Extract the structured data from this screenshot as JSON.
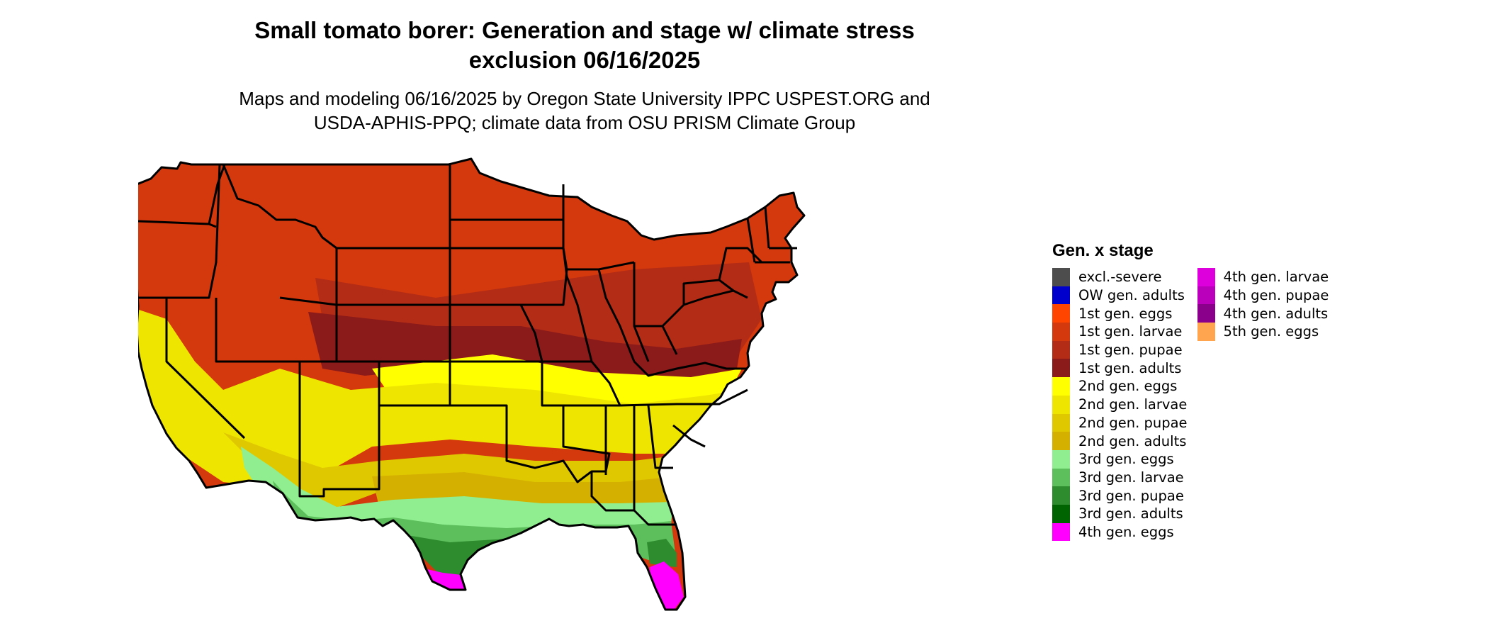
{
  "map": {
    "title_line1": "Small tomato borer: Generation and stage w/ climate stress",
    "title_line2": "exclusion 06/16/2025",
    "subtitle_line1": "Maps and modeling 06/16/2025 by Oregon State University IPPC USPEST.ORG and",
    "subtitle_line2": "USDA-APHIS-PPQ; climate data from OSU PRISM Climate Group",
    "region": "Contiguous United States",
    "zones": [
      {
        "name": "excl-north-west",
        "category": "excl.-severe"
      },
      {
        "name": "excl-rockies",
        "category": "excl.-severe"
      },
      {
        "name": "excl-upper-midwest",
        "category": "excl.-severe"
      },
      {
        "name": "excl-new-england",
        "category": "excl.-severe"
      },
      {
        "name": "first-gen-larvae-band",
        "category": "1st gen. larvae"
      },
      {
        "name": "first-gen-pupae-band",
        "category": "1st gen. pupae"
      },
      {
        "name": "first-gen-adults-band",
        "category": "1st gen. adults"
      },
      {
        "name": "second-gen-eggs-band",
        "category": "2nd gen. eggs"
      },
      {
        "name": "second-gen-larvae-band",
        "category": "2nd gen. larvae"
      },
      {
        "name": "second-gen-pupae-band",
        "category": "2nd gen. pupae"
      },
      {
        "name": "second-gen-adults-band",
        "category": "2nd gen. adults"
      },
      {
        "name": "third-gen-eggs-band",
        "category": "3rd gen. eggs"
      },
      {
        "name": "third-gen-larvae-band",
        "category": "3rd gen. larvae"
      },
      {
        "name": "third-gen-pupae-band",
        "category": "3rd gen. pupae"
      },
      {
        "name": "fourth-gen-eggs-south-texas",
        "category": "4th gen. eggs"
      },
      {
        "name": "fourth-gen-eggs-south-florida",
        "category": "4th gen. eggs"
      }
    ]
  },
  "legend": {
    "title": "Gen. x stage",
    "columns": [
      [
        {
          "label": "excl.-severe",
          "color": "#4d4d4d"
        },
        {
          "label": "OW gen. adults",
          "color": "#0000cd"
        },
        {
          "label": "1st gen. eggs",
          "color": "#ff4500"
        },
        {
          "label": "1st gen. larvae",
          "color": "#d4380d"
        },
        {
          "label": "1st gen. pupae",
          "color": "#b32c15"
        },
        {
          "label": "1st gen. adults",
          "color": "#8b1a1a"
        },
        {
          "label": "2nd gen. eggs",
          "color": "#ffff00"
        },
        {
          "label": "2nd gen. larvae",
          "color": "#eee600"
        },
        {
          "label": "2nd gen. pupae",
          "color": "#e0c800"
        },
        {
          "label": "2nd gen. adults",
          "color": "#d4b000"
        },
        {
          "label": "3rd gen. eggs",
          "color": "#90ee90"
        },
        {
          "label": "3rd gen. larvae",
          "color": "#5cbf5c"
        },
        {
          "label": "3rd gen. pupae",
          "color": "#2e8b2e"
        },
        {
          "label": "3rd gen. adults",
          "color": "#006400"
        },
        {
          "label": "4th gen. eggs",
          "color": "#ff00ff"
        }
      ],
      [
        {
          "label": "4th gen. larvae",
          "color": "#dd00dd"
        },
        {
          "label": "4th gen. pupae",
          "color": "#bb00bb"
        },
        {
          "label": "4th gen. adults",
          "color": "#8b008b"
        },
        {
          "label": "5th gen. eggs",
          "color": "#ffa54f"
        }
      ]
    ]
  }
}
